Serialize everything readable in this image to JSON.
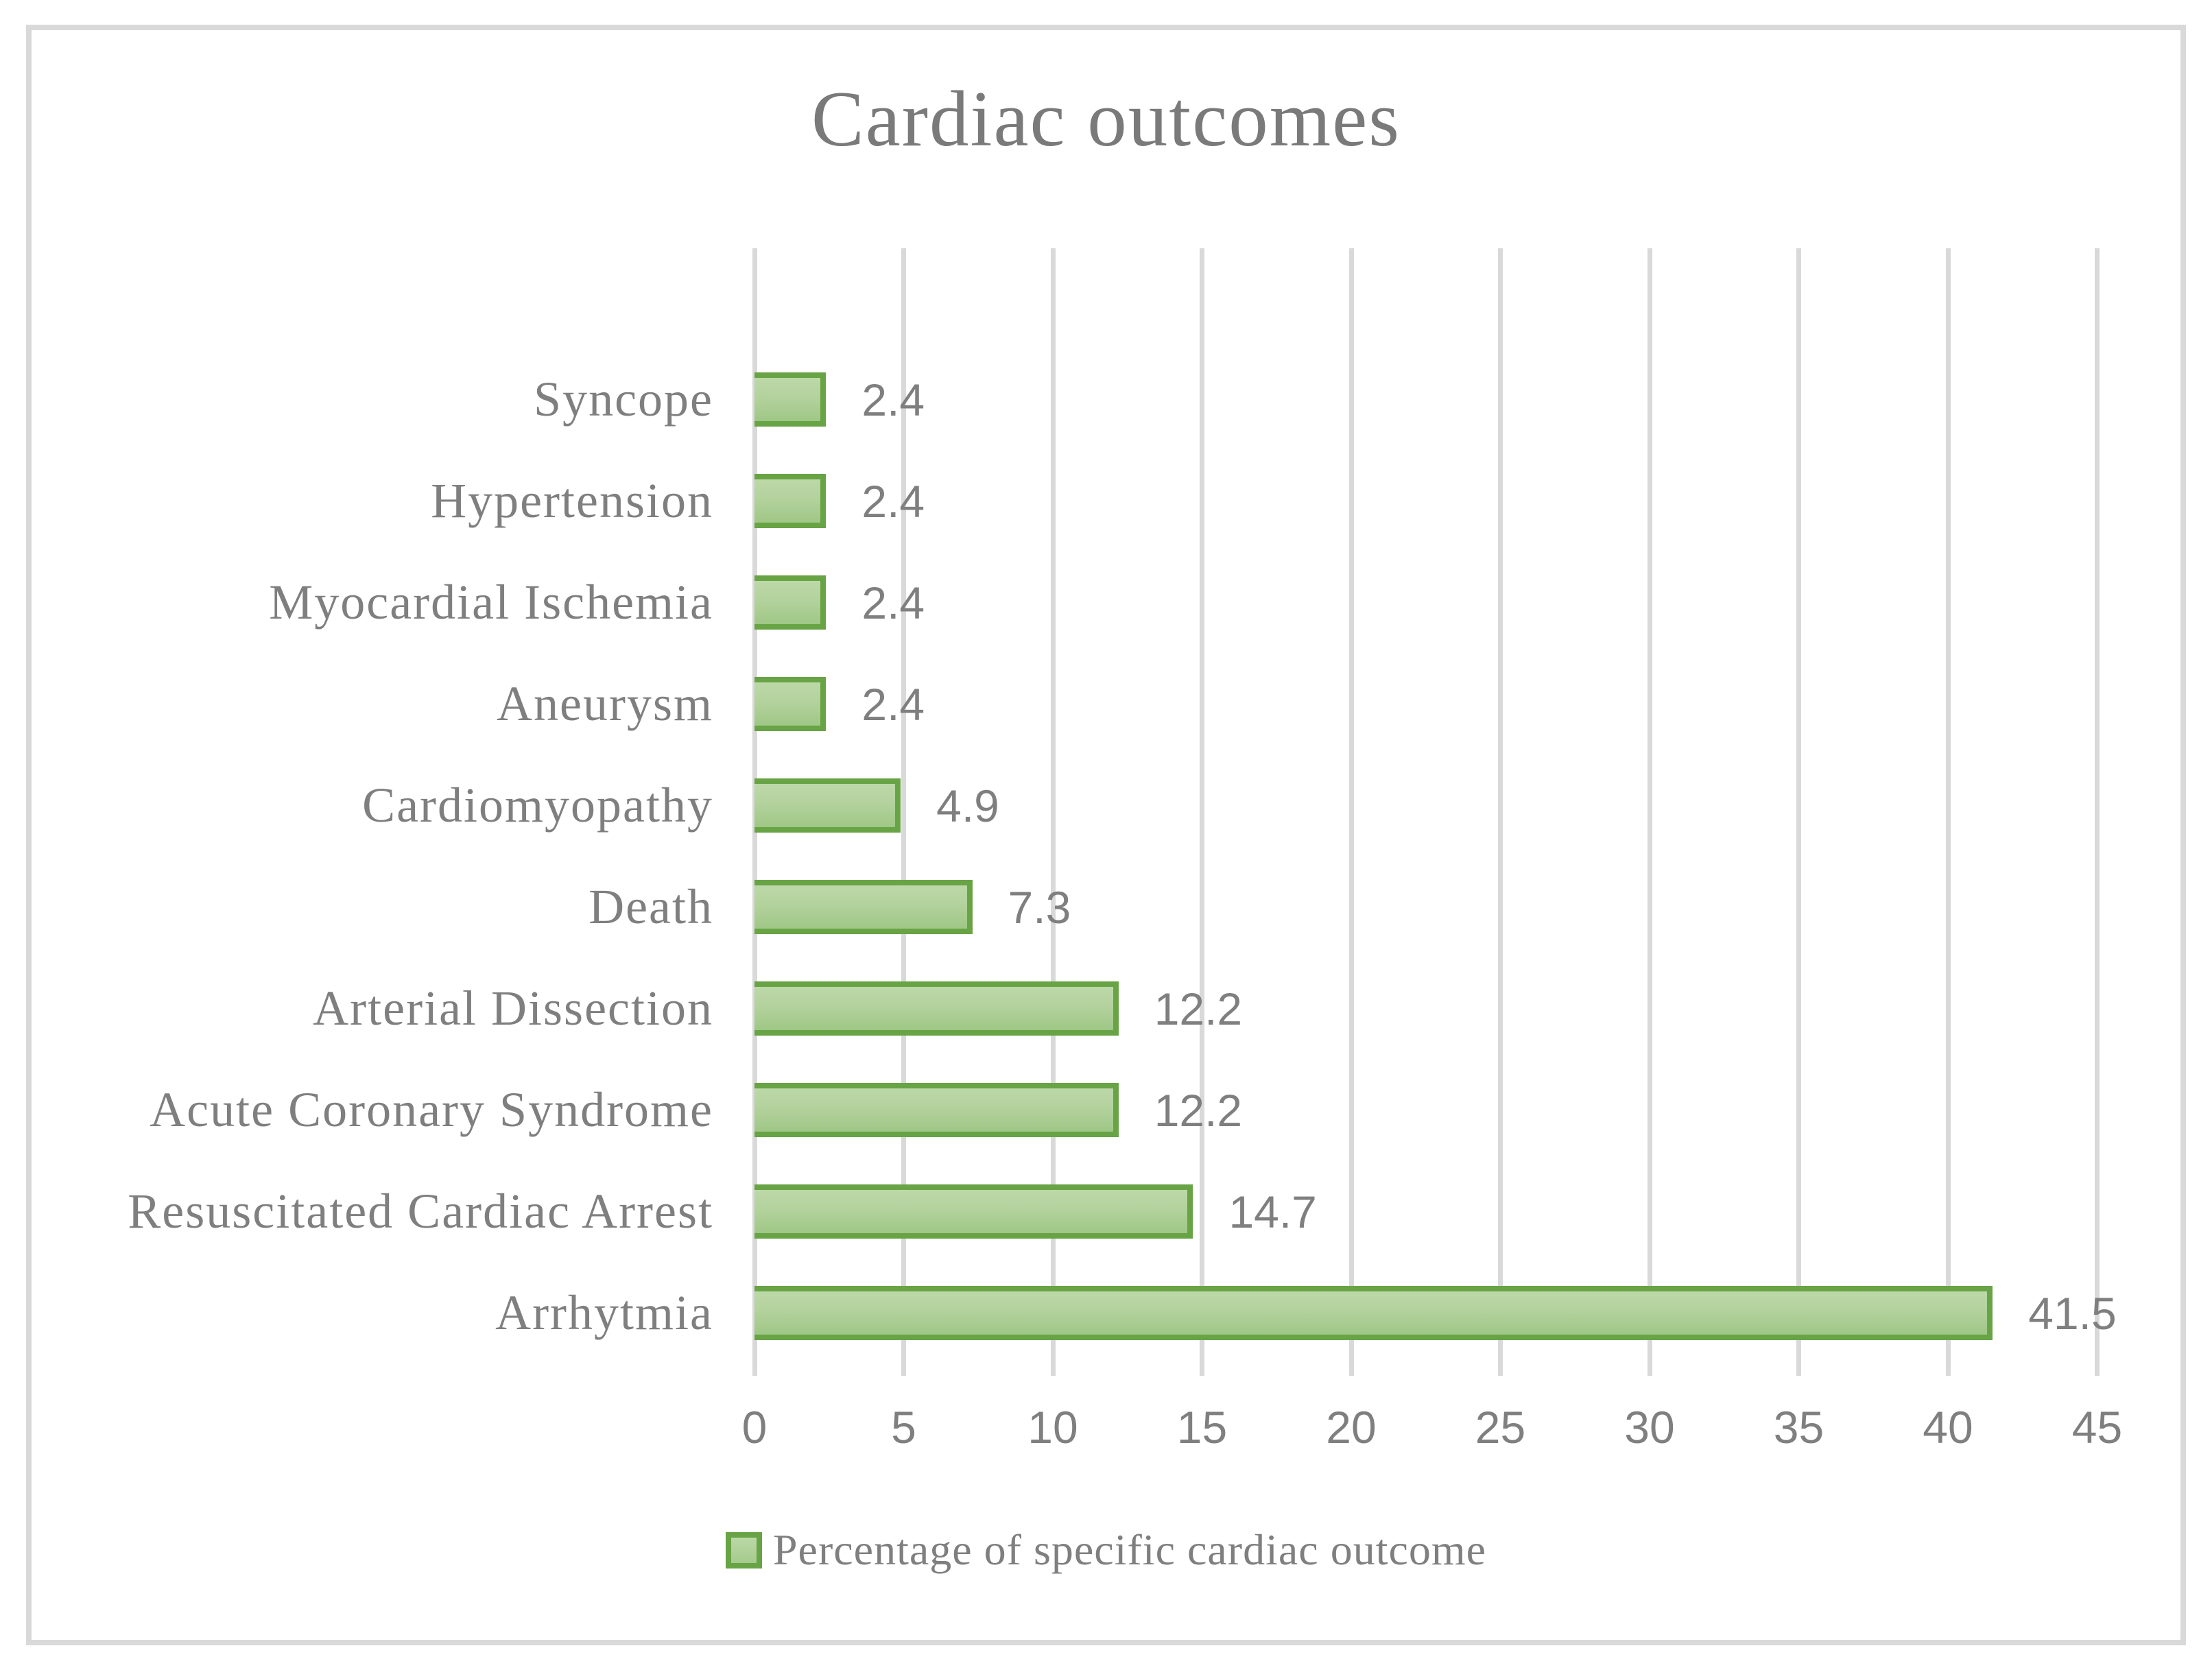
{
  "title": "Cardiac outcomes",
  "legend": {
    "label": "Percentage of specific cardiac outcome"
  },
  "colors": {
    "bar_fill_top": "#bcd8a8",
    "bar_fill_bottom": "#9fc786",
    "bar_border": "#68a445",
    "gridline": "#d9d9d9",
    "frame_border": "#d9d9d9",
    "text": "#7f7f7f"
  },
  "chart_data": {
    "type": "bar",
    "orientation": "horizontal",
    "title": "Cardiac outcomes",
    "xlabel": "",
    "ylabel": "",
    "categories": [
      "Syncope",
      "Hypertension",
      "Myocardial Ischemia",
      "Aneurysm",
      "Cardiomyopathy",
      "Death",
      "Arterial Dissection",
      "Acute Coronary Syndrome",
      "Resuscitated Cardiac Arrest",
      "Arrhytmia"
    ],
    "values": [
      2.4,
      2.4,
      2.4,
      2.4,
      4.9,
      7.3,
      12.2,
      12.2,
      14.7,
      41.5
    ],
    "value_labels": [
      "2.4",
      "2.4",
      "2.4",
      "2.4",
      "4.9",
      "7.3",
      "12.2",
      "12.2",
      "14.7",
      "41.5"
    ],
    "series": [
      {
        "name": "Percentage of specific cardiac outcome",
        "values": [
          2.4,
          2.4,
          2.4,
          2.4,
          4.9,
          7.3,
          12.2,
          12.2,
          14.7,
          41.5
        ]
      }
    ],
    "xlim": [
      0,
      45
    ],
    "xticks": [
      "0",
      "5",
      "10",
      "15",
      "20",
      "25",
      "30",
      "35",
      "40",
      "45"
    ],
    "grid": "vertical-gridlines-on",
    "data_labels": "outside-end",
    "legend_position": "bottom"
  }
}
